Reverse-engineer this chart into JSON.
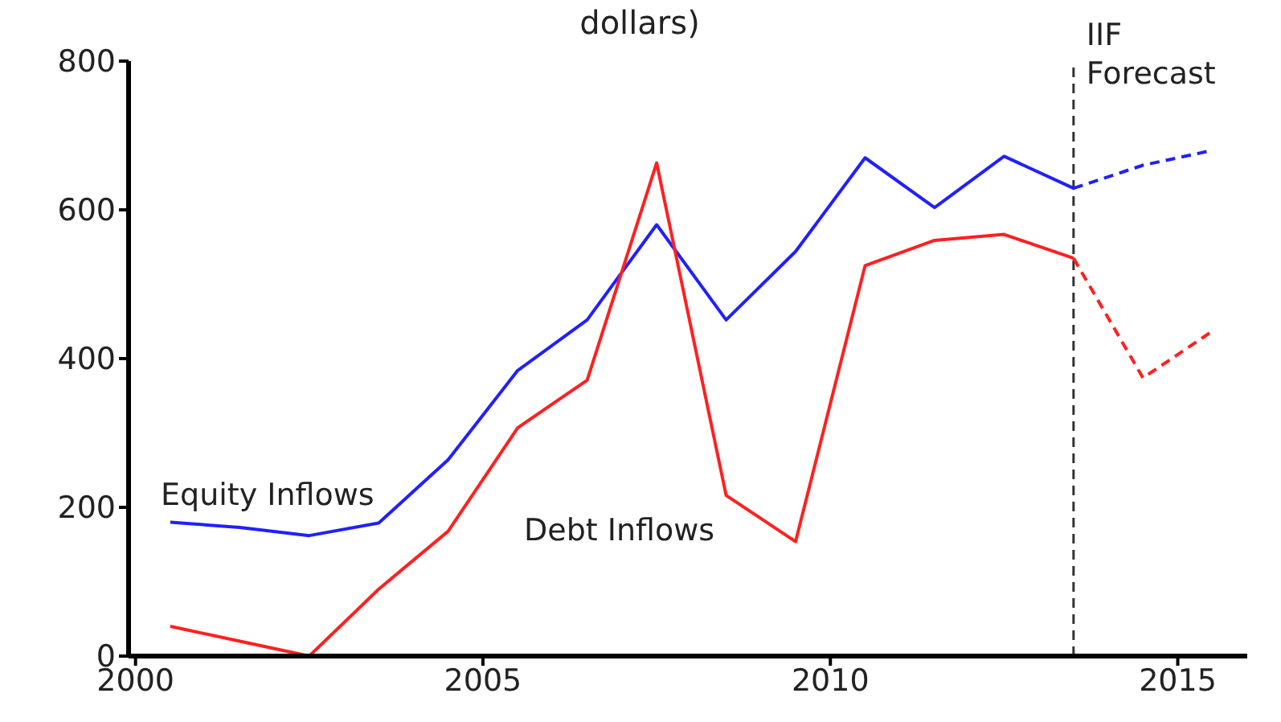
{
  "chart_data": {
    "type": "line",
    "title": "dollars)",
    "xlim": [
      1999.9,
      2016
    ],
    "xticks": [
      2000,
      2005,
      2010,
      2015
    ],
    "ylim": [
      0,
      800
    ],
    "yticks": [
      0,
      200,
      400,
      600,
      800
    ],
    "legend": false,
    "marker": "none",
    "series": [
      {
        "name": "Equity Inflows",
        "color": "#2020ff",
        "line_style": "solid",
        "x": [
          2000.5,
          2001.5,
          2002.5,
          2003.5,
          2004.5,
          2005.5,
          2006.5,
          2007.5,
          2008.5,
          2009.5,
          2010.5,
          2011.5,
          2012.5,
          2013.5
        ],
        "values": [
          180,
          173,
          162,
          179,
          264,
          384,
          452,
          580,
          452,
          544,
          670,
          603,
          672,
          629
        ]
      },
      {
        "name": "Debt Inflows",
        "color": "#ff2020",
        "line_style": "solid",
        "x": [
          2000.5,
          2001.5,
          2002.5,
          2003.5,
          2004.5,
          2005.5,
          2006.5,
          2007.5,
          2008.5,
          2009.5,
          2010.5,
          2011.5,
          2012.5,
          2013.5
        ],
        "values": [
          40,
          20,
          0,
          90,
          168,
          307,
          371,
          663,
          216,
          154,
          525,
          559,
          567,
          535
        ]
      },
      {
        "color": "#2020ff",
        "line_style": "dashed",
        "x": [
          2013.5,
          2014.5,
          2015.5
        ],
        "values": [
          629,
          660,
          680
        ]
      },
      {
        "color": "#ff2020",
        "line_style": "dashed",
        "x": [
          2013.5,
          2014.5,
          2015.5
        ],
        "values": [
          535,
          374,
          437
        ]
      }
    ],
    "ref_lines": [
      {
        "axis": "x",
        "value": 2013.5,
        "label": "IIF Forecast",
        "color": "#333333",
        "line_style": "dashed"
      }
    ]
  }
}
